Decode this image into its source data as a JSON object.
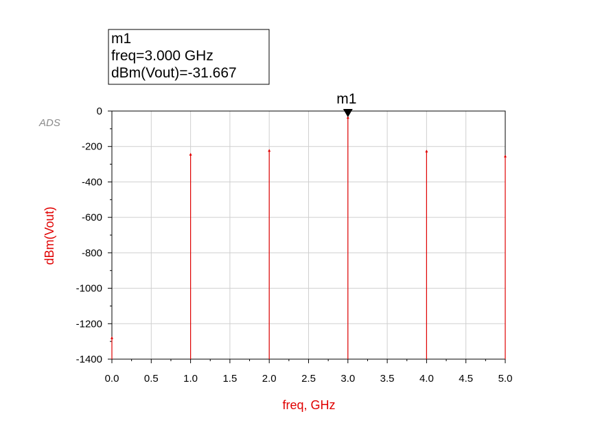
{
  "chart_data": {
    "type": "line",
    "xlabel": "freq, GHz",
    "ylabel": "dBm(Vout)",
    "xlim": [
      0.0,
      5.0
    ],
    "ylim": [
      -1400,
      0
    ],
    "x_ticks": [
      "0.0",
      "0.5",
      "1.0",
      "1.5",
      "2.0",
      "2.5",
      "3.0",
      "3.5",
      "4.0",
      "4.5",
      "5.0"
    ],
    "y_ticks": [
      "0",
      "-200",
      "-400",
      "-600",
      "-800",
      "-1000",
      "-1200",
      "-1400"
    ],
    "grid": true,
    "series": [
      {
        "x": [
          0.0,
          1.0,
          2.0,
          3.0,
          4.0,
          5.0
        ],
        "values": [
          -1275,
          -240,
          -218,
          -31.667,
          -222,
          -250
        ],
        "color": "#e00000"
      }
    ],
    "marker": {
      "name": "m1",
      "x": 3.0,
      "y": -31.667,
      "box_lines": [
        "m1",
        "freq=3.000 GHz",
        "dBm(Vout)=-31.667"
      ]
    }
  },
  "logo": "ADS",
  "colors": {
    "trace": "#e00000",
    "grid": "#cfcfcf",
    "axis": "#000000",
    "logo": "#8a8a8a"
  }
}
